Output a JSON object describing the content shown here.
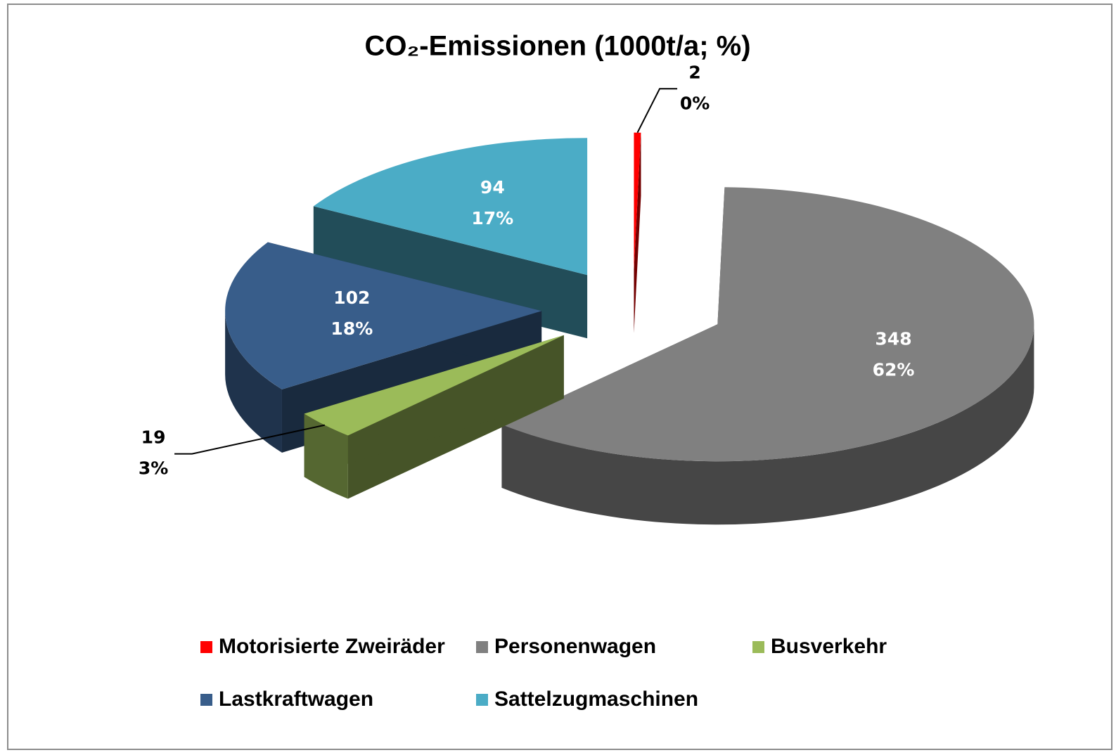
{
  "chart_data": {
    "type": "pie3d",
    "title": "CO₂-Emissionen (1000t/a; %)",
    "categories": [
      "Motorisierte Zweiräder",
      "Personenwagen",
      "Busverkehr",
      "Lastkraftwagen",
      "Sattelzugmaschinen"
    ],
    "values": [
      2,
      348,
      19,
      102,
      94
    ],
    "percent_labels": [
      "0%",
      "62%",
      "3%",
      "18%",
      "17%"
    ],
    "colors": [
      "#ff0000",
      "#808080",
      "#9bbb59",
      "#385d8a",
      "#4bacc6"
    ],
    "legend": "bottom"
  }
}
